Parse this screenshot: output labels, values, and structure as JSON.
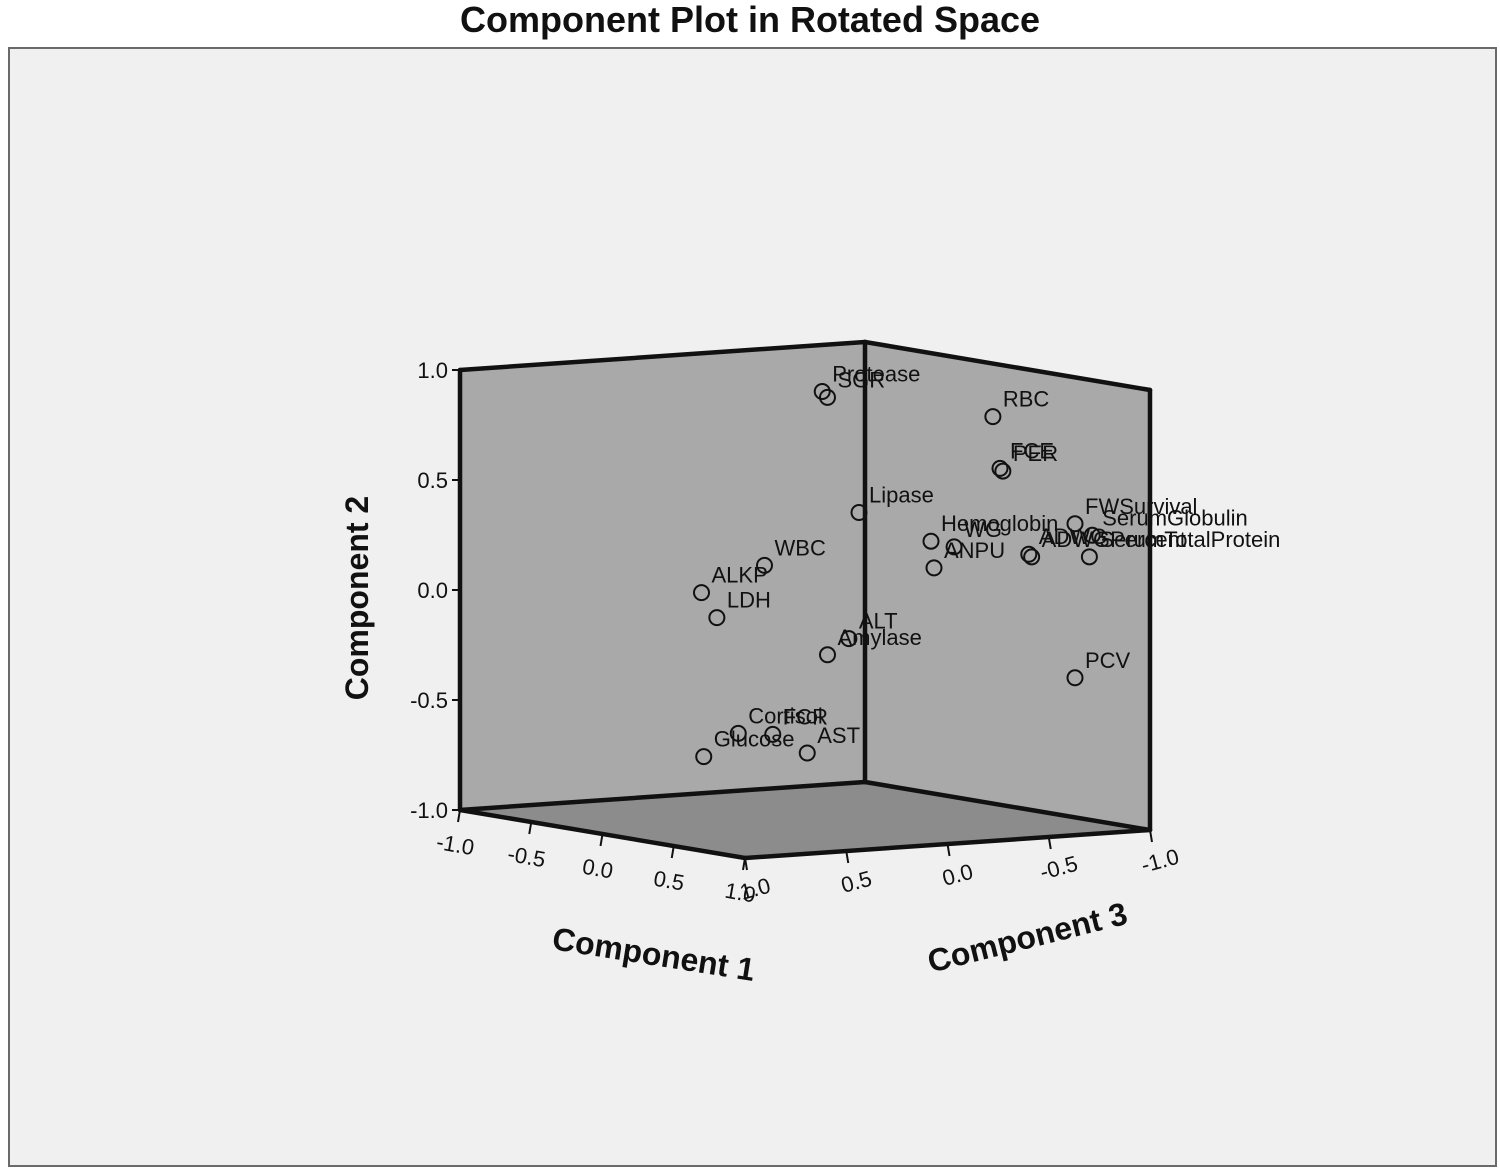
{
  "chart_data": {
    "type": "scatter",
    "title": "Component Plot in Rotated Space",
    "axes": {
      "x": {
        "title": "Component 1",
        "range": [
          -1.0,
          1.0
        ],
        "ticks": [
          "-1.0",
          "-0.5",
          "0.0",
          "0.5",
          "1.0"
        ]
      },
      "y": {
        "title": "Component 2",
        "range": [
          -1.0,
          1.0
        ],
        "ticks": [
          "1.0",
          "0.5",
          "0.0",
          "-0.5",
          "-1.0"
        ]
      },
      "z": {
        "title": "Component 3",
        "range": [
          -1.0,
          1.0
        ],
        "ticks": [
          "-1.0",
          "-0.5",
          "0.0",
          "0.5",
          "1.0"
        ]
      }
    },
    "marker": "open-circle",
    "colors": {
      "background": "#f0f0f0",
      "wall": "#a9a9a9",
      "floor": "#8c8c8c",
      "edge": "#111111"
    },
    "points": [
      {
        "label": "SGR",
        "x": 0.3,
        "y": 0.96,
        "z": 0.1
      },
      {
        "label": "Protease",
        "x": 0.05,
        "y": 0.95,
        "z": -0.05
      },
      {
        "label": "RBC",
        "x": 0.75,
        "y": 0.89,
        "z": -0.4
      },
      {
        "label": "FCE",
        "x": 0.8,
        "y": 0.66,
        "z": -0.4
      },
      {
        "label": "PER",
        "x": 0.82,
        "y": 0.65,
        "z": -0.4
      },
      {
        "label": "Lipase",
        "x": 0.45,
        "y": 0.45,
        "z": 0.05
      },
      {
        "label": "FWSurvival",
        "x": 0.9,
        "y": 0.4,
        "z": -0.7
      },
      {
        "label": "WG",
        "x": 0.62,
        "y": 0.29,
        "z": -0.3
      },
      {
        "label": "Hemoglobin",
        "x": 0.6,
        "y": 0.32,
        "z": -0.2
      },
      {
        "label": "SerumGlobulin",
        "x": 0.95,
        "y": 0.35,
        "z": -0.75
      },
      {
        "label": "SerumTotalProtein",
        "x": 0.93,
        "y": 0.25,
        "z": -0.75
      },
      {
        "label": "ADWG",
        "x": 0.86,
        "y": 0.27,
        "z": -0.5
      },
      {
        "label": "ADWGPercent",
        "x": 0.88,
        "y": 0.26,
        "z": -0.5
      },
      {
        "label": "ANPU",
        "x": 0.55,
        "y": 0.19,
        "z": -0.25
      },
      {
        "label": "ALKP",
        "x": -0.3,
        "y": 0.02,
        "z": 0.3
      },
      {
        "label": "WBC",
        "x": 0.0,
        "y": 0.17,
        "z": 0.2
      },
      {
        "label": "LDH",
        "x": -0.05,
        "y": -0.06,
        "z": 0.4
      },
      {
        "label": "Amylase",
        "x": 0.3,
        "y": -0.21,
        "z": 0.1
      },
      {
        "label": "ALT",
        "x": 0.45,
        "y": -0.12,
        "z": 0.1
      },
      {
        "label": "PCV",
        "x": 0.9,
        "y": -0.3,
        "z": -0.7
      },
      {
        "label": "Cortisol",
        "x": 0.1,
        "y": -0.57,
        "z": 0.4
      },
      {
        "label": "FCR",
        "x": 0.2,
        "y": -0.57,
        "z": 0.3
      },
      {
        "label": "AST",
        "x": 0.3,
        "y": -0.65,
        "z": 0.2
      },
      {
        "label": "Glucose",
        "x": 0.0,
        "y": -0.68,
        "z": 0.5
      }
    ]
  }
}
